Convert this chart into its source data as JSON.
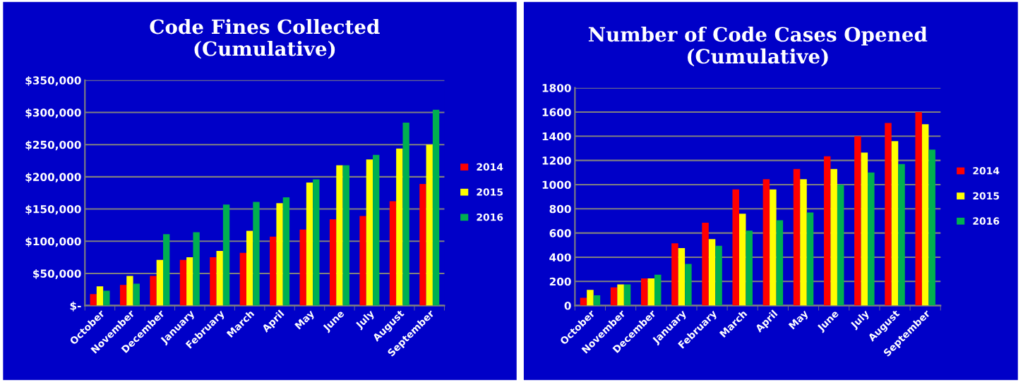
{
  "chart_data": [
    {
      "type": "bar",
      "title": "Code Fines Collected\n(Cumulative)",
      "categories": [
        "October",
        "November",
        "December",
        "January",
        "February",
        "March",
        "April",
        "May",
        "June",
        "July",
        "August",
        "September"
      ],
      "series": [
        {
          "name": "2014",
          "color": "#ff0000",
          "values": [
            18000,
            32000,
            46000,
            71000,
            75000,
            82000,
            107000,
            118000,
            134000,
            139000,
            162000,
            189000
          ]
        },
        {
          "name": "2015",
          "color": "#ffff00",
          "values": [
            30000,
            46000,
            71000,
            75000,
            85000,
            116000,
            159000,
            191000,
            218000,
            227000,
            244000,
            250000
          ]
        },
        {
          "name": "2016",
          "color": "#00b050",
          "values": [
            23000,
            34000,
            111000,
            114000,
            157000,
            161000,
            168000,
            196000,
            218000,
            234000,
            284000,
            304000
          ]
        }
      ],
      "ylim": [
        0,
        350000
      ],
      "yticks": [
        {
          "value": 0,
          "label": "$-"
        },
        {
          "value": 50000,
          "label": "$50,000"
        },
        {
          "value": 100000,
          "label": "$100,000"
        },
        {
          "value": 150000,
          "label": "$150,000"
        },
        {
          "value": 200000,
          "label": "$200,000"
        },
        {
          "value": 250000,
          "label": "$250,000"
        },
        {
          "value": 300000,
          "label": "$300,000"
        },
        {
          "value": 350000,
          "label": "$350,000"
        }
      ],
      "grid": "y",
      "legend": "right"
    },
    {
      "type": "bar",
      "title": "Number of Code Cases Opened\n(Cumulative)",
      "categories": [
        "October",
        "November",
        "December",
        "January",
        "February",
        "March",
        "April",
        "May",
        "June",
        "July",
        "August",
        "September"
      ],
      "series": [
        {
          "name": "2014",
          "color": "#ff0000",
          "values": [
            65,
            150,
            225,
            515,
            685,
            960,
            1045,
            1130,
            1235,
            1400,
            1510,
            1600
          ]
        },
        {
          "name": "2015",
          "color": "#ffff00",
          "values": [
            130,
            175,
            225,
            475,
            550,
            760,
            960,
            1045,
            1130,
            1265,
            1360,
            1500
          ]
        },
        {
          "name": "2016",
          "color": "#00b050",
          "values": [
            85,
            175,
            255,
            345,
            495,
            620,
            705,
            770,
            1000,
            1100,
            1170,
            1290
          ]
        }
      ],
      "ylim": [
        0,
        1800
      ],
      "yticks": [
        0,
        200,
        400,
        600,
        800,
        1000,
        1200,
        1400,
        1600,
        1800
      ],
      "grid": "y",
      "legend": "right"
    }
  ]
}
